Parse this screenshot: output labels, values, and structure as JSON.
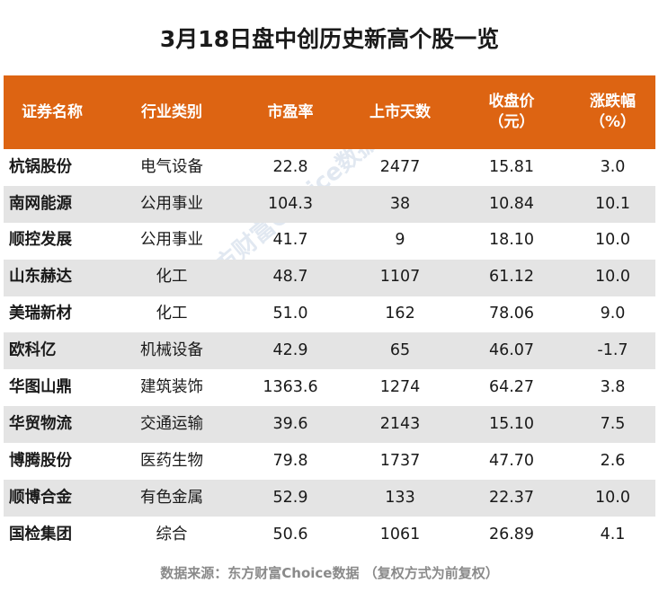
{
  "chart_data": {
    "type": "table",
    "title": "3月18日盘中创历史新高个股一览",
    "columns": [
      "证券名称",
      "行业类别",
      "市盈率",
      "上市天数",
      "收盘价\n（元）",
      "涨跌幅\n（%）"
    ],
    "rows": [
      [
        "杭锅股份",
        "电气设备",
        "22.8",
        "2477",
        "15.81",
        "3.0"
      ],
      [
        "南网能源",
        "公用事业",
        "104.3",
        "38",
        "10.84",
        "10.1"
      ],
      [
        "顺控发展",
        "公用事业",
        "41.7",
        "9",
        "18.10",
        "10.0"
      ],
      [
        "山东赫达",
        "化工",
        "48.7",
        "1107",
        "61.12",
        "10.0"
      ],
      [
        "美瑞新材",
        "化工",
        "51.0",
        "162",
        "78.06",
        "9.0"
      ],
      [
        "欧科亿",
        "机械设备",
        "42.9",
        "65",
        "46.07",
        "-1.7"
      ],
      [
        "华图山鼎",
        "建筑装饰",
        "1363.6",
        "1274",
        "64.27",
        "3.8"
      ],
      [
        "华贸物流",
        "交通运输",
        "39.6",
        "2143",
        "15.10",
        "7.5"
      ],
      [
        "博腾股份",
        "医药生物",
        "79.8",
        "1737",
        "47.70",
        "2.6"
      ],
      [
        "顺博合金",
        "有色金属",
        "52.9",
        "133",
        "22.37",
        "10.0"
      ],
      [
        "国检集团",
        "综合",
        "50.6",
        "1061",
        "26.89",
        "4.1"
      ]
    ],
    "source": "数据来源：东方财富Choice数据 （复权方式为前复权）",
    "watermark": "东方财富Choice数据"
  },
  "colors": {
    "header_bg": "#dd6412",
    "header_text": "#ffffff",
    "alt_row_bg": "#e4e4e4",
    "source_text": "#8a8a8a"
  }
}
